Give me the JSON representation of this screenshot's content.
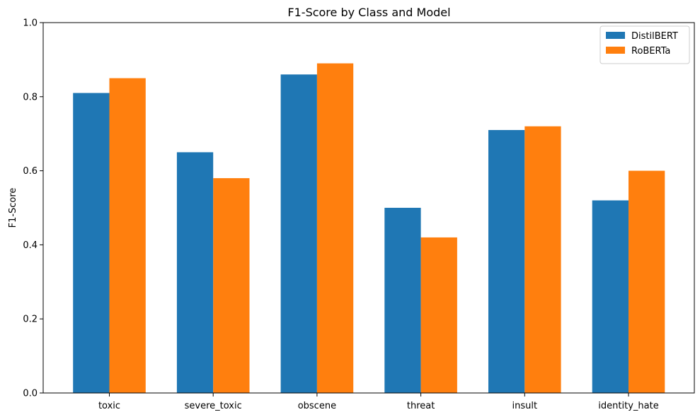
{
  "chart_data": {
    "type": "bar",
    "title": "F1-Score by Class and Model",
    "xlabel": "",
    "ylabel": "F1-Score",
    "ylim": [
      0,
      1.0
    ],
    "yticks": [
      "0.0",
      "0.2",
      "0.4",
      "0.6",
      "0.8",
      "1.0"
    ],
    "categories": [
      "toxic",
      "severe_toxic",
      "obscene",
      "threat",
      "insult",
      "identity_hate"
    ],
    "series": [
      {
        "name": "DistilBERT",
        "color": "#1f77b4",
        "values": [
          0.81,
          0.65,
          0.86,
          0.5,
          0.71,
          0.52
        ]
      },
      {
        "name": "RoBERTa",
        "color": "#ff7f0e",
        "values": [
          0.85,
          0.58,
          0.89,
          0.42,
          0.72,
          0.6
        ]
      }
    ],
    "grid": false,
    "legend": "top-right"
  }
}
